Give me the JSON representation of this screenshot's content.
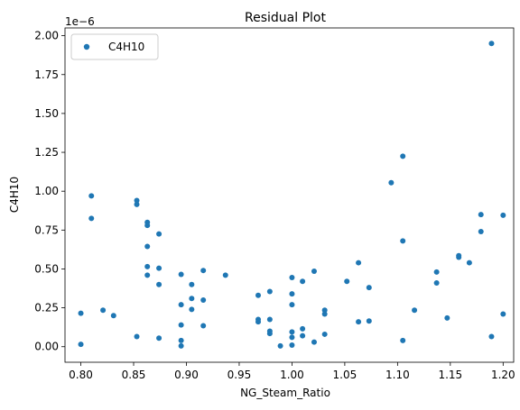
{
  "chart_data": {
    "type": "scatter",
    "title": "Residual Plot",
    "xlabel": "NG_Steam_Ratio",
    "ylabel": "C4H10",
    "y_offset_label": "1e−6",
    "xlim": [
      0.785,
      1.21
    ],
    "ylim": [
      -0.1,
      2.05
    ],
    "x_ticks": [
      0.8,
      0.85,
      0.9,
      0.95,
      1.0,
      1.05,
      1.1,
      1.15,
      1.2
    ],
    "x_tick_labels": [
      "0.80",
      "0.85",
      "0.90",
      "0.95",
      "1.00",
      "1.05",
      "1.10",
      "1.15",
      "1.20"
    ],
    "y_ticks": [
      0.0,
      0.25,
      0.5,
      0.75,
      1.0,
      1.25,
      1.5,
      1.75,
      2.0
    ],
    "y_tick_labels": [
      "0.00",
      "0.25",
      "0.50",
      "0.75",
      "1.00",
      "1.25",
      "1.50",
      "1.75",
      "2.00"
    ],
    "grid": false,
    "legend_position": "top-left",
    "series": [
      {
        "name": "C4H10",
        "color": "#1f77b4",
        "points": [
          [
            0.8,
            0.015
          ],
          [
            0.8,
            0.215
          ],
          [
            0.81,
            0.97
          ],
          [
            0.81,
            0.825
          ],
          [
            0.821,
            0.235
          ],
          [
            0.831,
            0.2
          ],
          [
            0.853,
            0.94
          ],
          [
            0.853,
            0.915
          ],
          [
            0.853,
            0.065
          ],
          [
            0.863,
            0.8
          ],
          [
            0.863,
            0.78
          ],
          [
            0.863,
            0.645
          ],
          [
            0.863,
            0.515
          ],
          [
            0.863,
            0.46
          ],
          [
            0.874,
            0.725
          ],
          [
            0.874,
            0.505
          ],
          [
            0.874,
            0.4
          ],
          [
            0.874,
            0.055
          ],
          [
            0.895,
            0.465
          ],
          [
            0.895,
            0.27
          ],
          [
            0.895,
            0.14
          ],
          [
            0.895,
            0.04
          ],
          [
            0.895,
            0.005
          ],
          [
            0.905,
            0.4
          ],
          [
            0.905,
            0.31
          ],
          [
            0.905,
            0.24
          ],
          [
            0.916,
            0.49
          ],
          [
            0.916,
            0.3
          ],
          [
            0.916,
            0.135
          ],
          [
            0.937,
            0.46
          ],
          [
            0.968,
            0.33
          ],
          [
            0.968,
            0.175
          ],
          [
            0.968,
            0.16
          ],
          [
            0.979,
            0.355
          ],
          [
            0.979,
            0.175
          ],
          [
            0.979,
            0.1
          ],
          [
            0.979,
            0.085
          ],
          [
            0.989,
            0.005
          ],
          [
            1.0,
            0.445
          ],
          [
            1.0,
            0.34
          ],
          [
            1.0,
            0.27
          ],
          [
            1.0,
            0.095
          ],
          [
            1.0,
            0.06
          ],
          [
            1.0,
            0.01
          ],
          [
            1.01,
            0.42
          ],
          [
            1.01,
            0.115
          ],
          [
            1.01,
            0.07
          ],
          [
            1.021,
            0.485
          ],
          [
            1.021,
            0.03
          ],
          [
            1.031,
            0.235
          ],
          [
            1.031,
            0.21
          ],
          [
            1.031,
            0.08
          ],
          [
            1.052,
            0.42
          ],
          [
            1.063,
            0.54
          ],
          [
            1.063,
            0.16
          ],
          [
            1.073,
            0.38
          ],
          [
            1.073,
            0.165
          ],
          [
            1.094,
            1.055
          ],
          [
            1.105,
            1.225
          ],
          [
            1.105,
            0.68
          ],
          [
            1.105,
            0.04
          ],
          [
            1.116,
            0.235
          ],
          [
            1.137,
            0.48
          ],
          [
            1.137,
            0.41
          ],
          [
            1.147,
            0.185
          ],
          [
            1.158,
            0.585
          ],
          [
            1.158,
            0.575
          ],
          [
            1.168,
            0.54
          ],
          [
            1.179,
            0.85
          ],
          [
            1.179,
            0.74
          ],
          [
            1.189,
            1.95
          ],
          [
            1.189,
            0.065
          ],
          [
            1.2,
            0.845
          ],
          [
            1.2,
            0.21
          ]
        ]
      }
    ]
  }
}
